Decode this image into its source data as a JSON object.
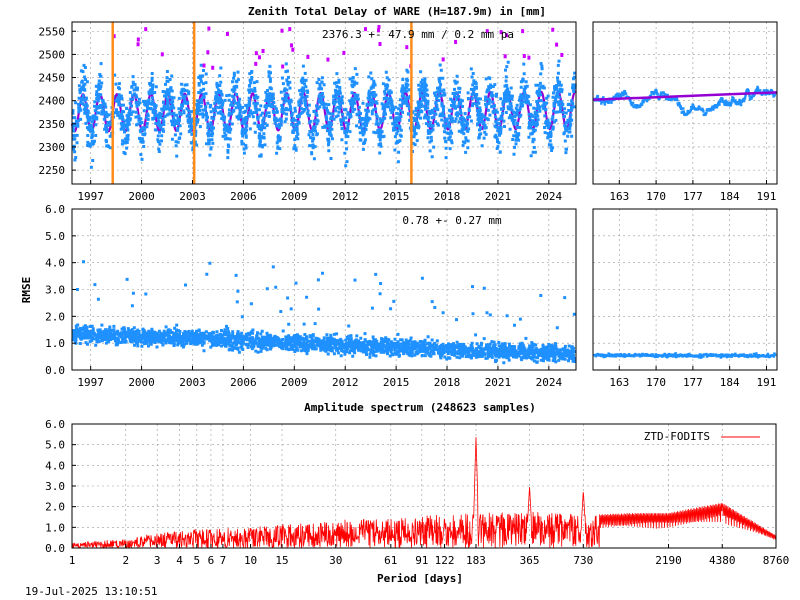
{
  "colors": {
    "points": "#1e90ff",
    "fit": "#9400d3",
    "outlier": "#cc00ff",
    "breaks": "#ff8c1a",
    "spectrum": "#ff0000"
  },
  "chart_data": [
    {
      "type": "scatter",
      "title": "Zenith Total Delay of WARE (H=187.9m) in [mm]",
      "annotation": "2376.3 +-  47.9 mm /  0.2 mm pa",
      "xlim": [
        1995.9,
        2025.6
      ],
      "ylim": [
        2220,
        2570
      ],
      "x_ticks": [
        "1997",
        "2000",
        "2003",
        "2006",
        "2009",
        "2012",
        "2015",
        "2018",
        "2021",
        "2024"
      ],
      "y_ticks": [
        "2250",
        "2300",
        "2350",
        "2400",
        "2450",
        "2500",
        "2550"
      ],
      "mean": 2376.3,
      "std": 47.9,
      "trend_mm_per_year": 0.2,
      "seasonal_amplitude": 45,
      "fit_amplitude": 40,
      "breaks": [
        1998.3,
        2003.1,
        2015.9
      ],
      "grid": true,
      "zoom": {
        "xlim": [
          158,
          193
        ],
        "ylim": [
          2220,
          2570
        ],
        "x_ticks": [
          "163",
          "170",
          "177",
          "184",
          "191"
        ],
        "start_value": 2402,
        "end_value": 2418
      }
    },
    {
      "type": "scatter",
      "ylabel": "RMSE",
      "annotation": "0.78 +-  0.27 mm",
      "xlim": [
        1995.9,
        2025.6
      ],
      "ylim": [
        0,
        6
      ],
      "x_ticks": [
        "1997",
        "2000",
        "2003",
        "2006",
        "2009",
        "2012",
        "2015",
        "2018",
        "2021",
        "2024"
      ],
      "y_ticks": [
        "0.0",
        "1.0",
        "2.0",
        "3.0",
        "4.0",
        "5.0",
        "6.0"
      ],
      "mean": 0.78,
      "std": 0.27,
      "grid": true,
      "zoom": {
        "xlim": [
          158,
          193
        ],
        "ylim": [
          0,
          6
        ],
        "x_ticks": [
          "163",
          "170",
          "177",
          "184",
          "191"
        ],
        "level": 0.55
      }
    },
    {
      "type": "line",
      "title": "Amplitude spectrum (248623 samples)",
      "xlabel": "Period [days]",
      "x_scale": "log",
      "xlim": [
        1,
        8760
      ],
      "ylim": [
        0,
        6
      ],
      "x_ticks": [
        "1",
        "2",
        "3",
        "4",
        "5",
        "6",
        "7",
        "10",
        "15",
        "30",
        "61",
        "91",
        "122",
        "183",
        "365",
        "730",
        "2190",
        "4380",
        "8760"
      ],
      "y_ticks": [
        "0.0",
        "1.0",
        "2.0",
        "3.0",
        "4.0",
        "5.0",
        "6.0"
      ],
      "series": [
        {
          "name": "ZTD-FODITS"
        }
      ],
      "peaks": [
        {
          "period": 183,
          "amplitude": 5.4
        },
        {
          "period": 365,
          "amplitude": 3.0
        },
        {
          "period": 730,
          "amplitude": 2.8
        },
        {
          "period": 4380,
          "amplitude": 2.2
        }
      ],
      "envelope": [
        [
          1,
          0.25
        ],
        [
          2,
          0.45
        ],
        [
          3,
          0.7
        ],
        [
          5,
          0.9
        ],
        [
          10,
          1.05
        ],
        [
          30,
          1.35
        ],
        [
          61,
          1.5
        ],
        [
          91,
          1.6
        ],
        [
          183,
          1.7
        ],
        [
          365,
          1.8
        ],
        [
          730,
          1.6
        ],
        [
          1460,
          1.7
        ],
        [
          2190,
          1.7
        ],
        [
          4380,
          2.2
        ],
        [
          8760,
          0.6
        ]
      ],
      "grid": true,
      "legend": "top-right"
    }
  ],
  "footer": {
    "timestamp": "19-Jul-2025 13:10:51"
  }
}
